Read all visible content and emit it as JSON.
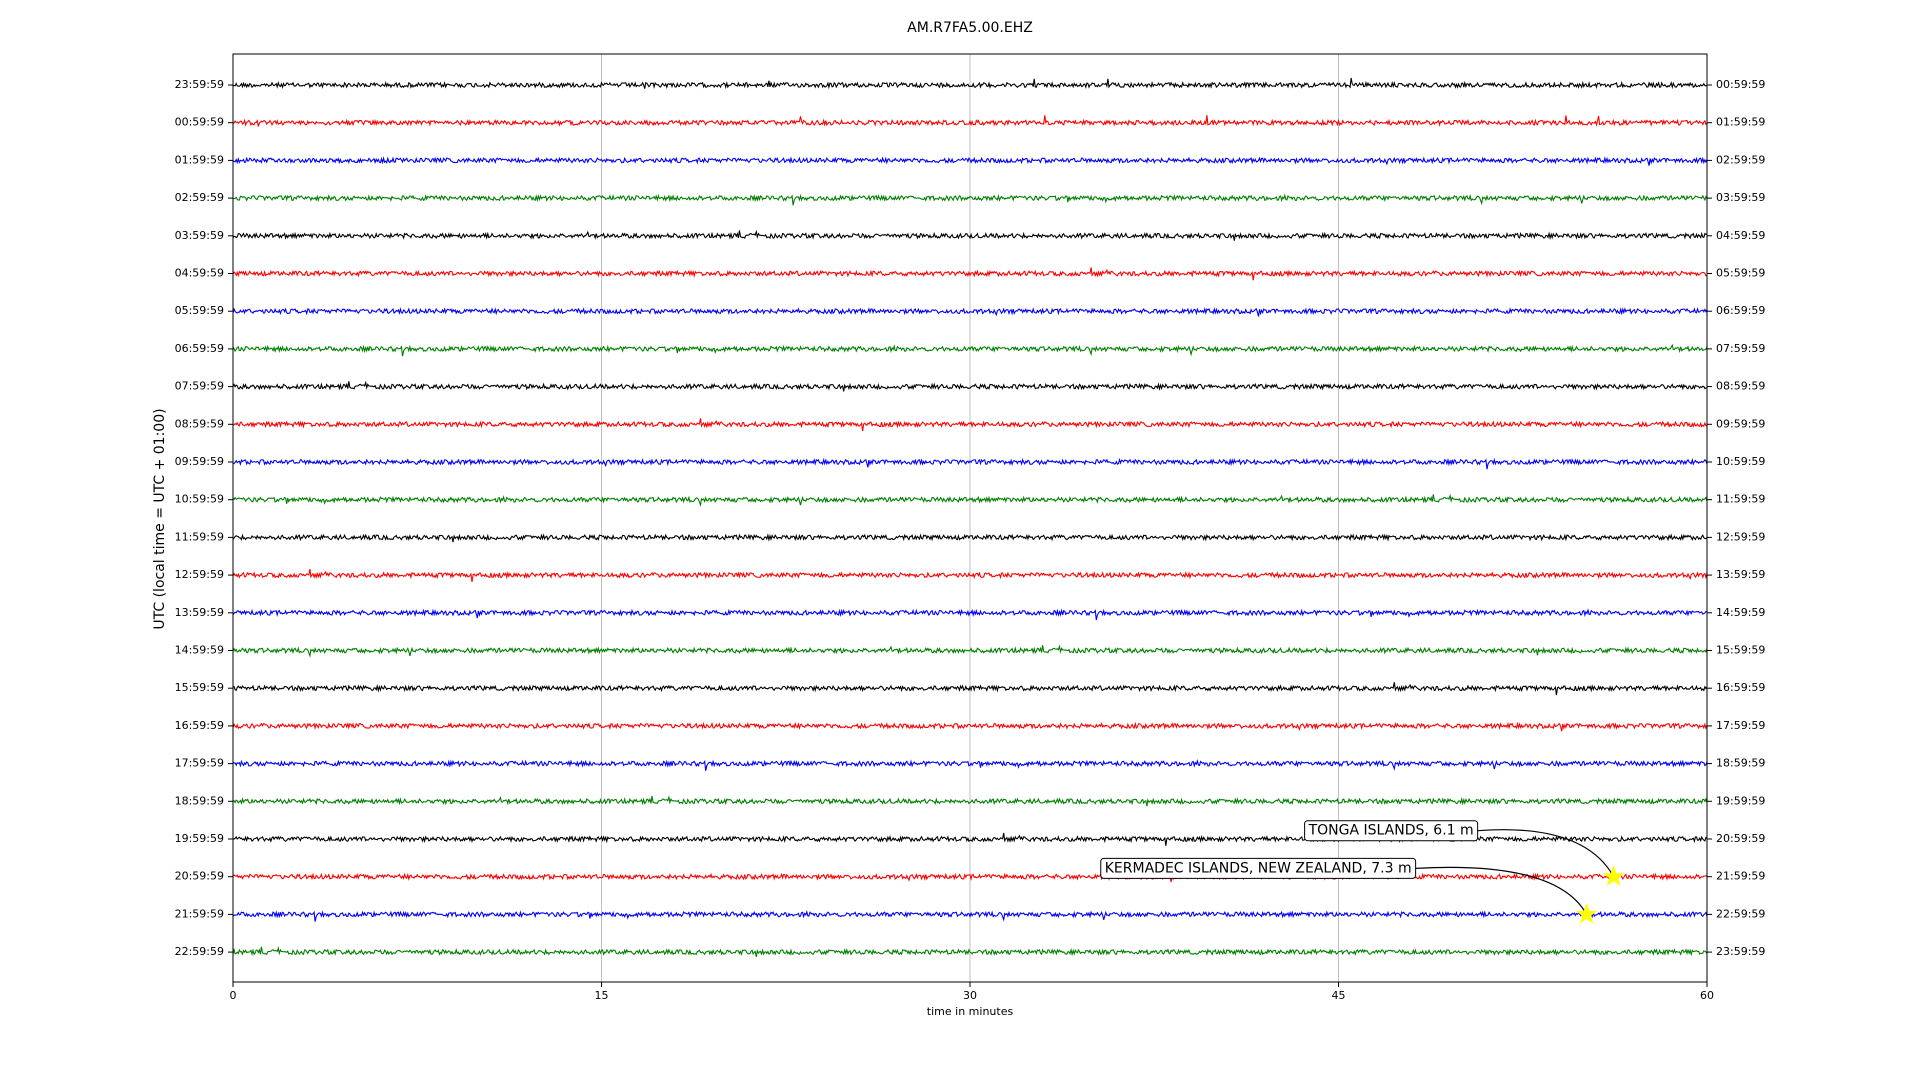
{
  "chart_data": {
    "type": "dayplot",
    "title": "AM.R7FA5.00.EHZ",
    "xlabel": "time in minutes",
    "ylabel": "UTC (local time = UTC + 01:00)",
    "xlim": [
      0,
      60
    ],
    "xticks": [
      0,
      15,
      30,
      45,
      60
    ],
    "grid": true,
    "categories": [
      "23:59:59",
      "00:59:59",
      "01:59:59",
      "02:59:59",
      "03:59:59",
      "04:59:59",
      "05:59:59",
      "06:59:59",
      "07:59:59",
      "08:59:59",
      "09:59:59",
      "10:59:59",
      "11:59:59",
      "12:59:59",
      "13:59:59",
      "14:59:59",
      "15:59:59",
      "16:59:59",
      "17:59:59",
      "18:59:59",
      "19:59:59",
      "20:59:59",
      "21:59:59",
      "22:59:59"
    ],
    "right_labels": [
      "00:59:59",
      "01:59:59",
      "02:59:59",
      "03:59:59",
      "04:59:59",
      "05:59:59",
      "06:59:59",
      "07:59:59",
      "08:59:59",
      "09:59:59",
      "10:59:59",
      "11:59:59",
      "12:59:59",
      "13:59:59",
      "14:59:59",
      "15:59:59",
      "16:59:59",
      "17:59:59",
      "18:59:59",
      "19:59:59",
      "20:59:59",
      "21:59:59",
      "22:59:59",
      "23:59:59"
    ],
    "colors": [
      "#000000",
      "#ff0000",
      "#0000ff",
      "#008000"
    ],
    "events": [
      {
        "label": "TONGA ISLANDS, 6.1 m",
        "x": 56.2,
        "category": "20:59:59"
      },
      {
        "label": "KERMADEC ISLANDS, NEW ZEALAND, 7.3 m",
        "x": 55.1,
        "category": "21:59:59"
      }
    ]
  }
}
